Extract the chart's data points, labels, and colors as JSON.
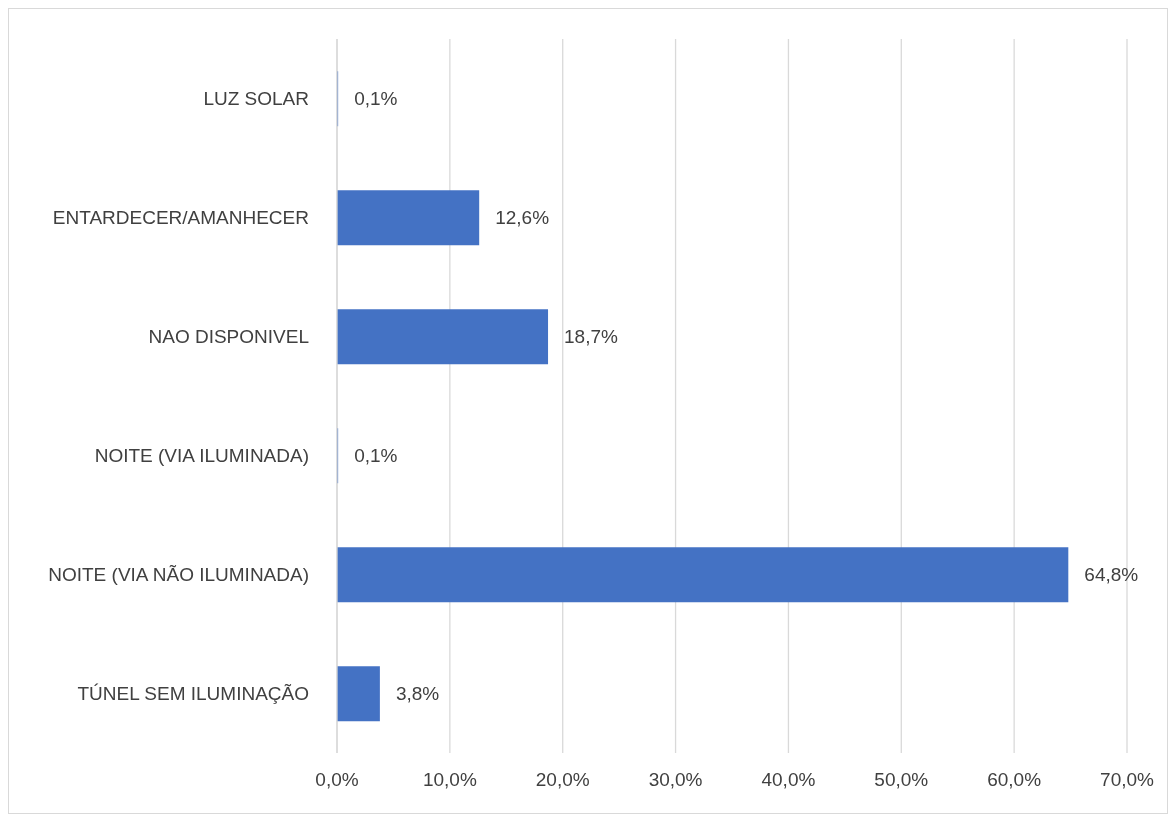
{
  "chart_data": {
    "type": "bar",
    "orientation": "horizontal",
    "categories": [
      "LUZ SOLAR",
      "ENTARDECER/AMANHECER",
      "NAO DISPONIVEL",
      "NOITE (VIA ILUMINADA)",
      "NOITE (VIA NÃO ILUMINADA)",
      "TÚNEL SEM ILUMINAÇÃO"
    ],
    "values": [
      0.1,
      12.6,
      18.7,
      0.1,
      64.8,
      3.8
    ],
    "value_labels": [
      "0,1%",
      "12,6%",
      "18,7%",
      "0,1%",
      "64,8%",
      "3,8%"
    ],
    "color": "#4472c4",
    "xlim": [
      0,
      70
    ],
    "xticks": [
      {
        "value": 0,
        "label": "0,0%"
      },
      {
        "value": 10,
        "label": "10,0%"
      },
      {
        "value": 20,
        "label": "20,0%"
      },
      {
        "value": 30,
        "label": "30,0%"
      },
      {
        "value": 40,
        "label": "40,0%"
      },
      {
        "value": 50,
        "label": "50,0%"
      },
      {
        "value": 60,
        "label": "60,0%"
      },
      {
        "value": 70,
        "label": "70,0%"
      }
    ],
    "grid": "x",
    "legend": false
  }
}
